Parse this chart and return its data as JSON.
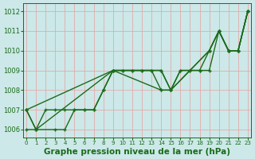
{
  "line1_x": [
    0,
    1,
    2,
    3,
    4,
    5,
    6,
    7,
    8,
    9,
    10,
    11,
    12,
    13,
    14,
    15,
    16,
    17,
    18,
    19,
    20,
    21,
    22,
    23
  ],
  "line1_y": [
    1007,
    1006,
    1007,
    1007,
    1007,
    1007,
    1007,
    1007,
    1008,
    1009,
    1009,
    1009,
    1009,
    1009,
    1009,
    1008,
    1009,
    1009,
    1009,
    1009,
    1011,
    1010,
    1010,
    1012
  ],
  "line2_x": [
    0,
    1,
    3,
    4,
    5,
    6,
    7,
    8,
    9,
    10,
    11,
    12,
    13,
    14,
    15,
    16,
    17,
    18,
    19,
    20,
    21,
    22,
    23
  ],
  "line2_y": [
    1007,
    1006,
    1006,
    1006,
    1007,
    1007,
    1007,
    1008,
    1009,
    1009,
    1009,
    1009,
    1009,
    1008,
    1008,
    1009,
    1009,
    1009,
    1010,
    1011,
    1010,
    1010,
    1012
  ],
  "line3_x": [
    0,
    9,
    14,
    15,
    19,
    20,
    21,
    22,
    23
  ],
  "line3_y": [
    1007,
    1009,
    1009,
    1008,
    1010,
    1011,
    1010,
    1010,
    1012
  ],
  "line4_x": [
    0,
    1,
    9,
    14,
    15,
    19,
    20,
    21,
    22,
    23
  ],
  "line4_y": [
    1006,
    1006,
    1009,
    1008,
    1008,
    1010,
    1011,
    1010,
    1010,
    1012
  ],
  "xlim": [
    -0.3,
    23.3
  ],
  "ylim": [
    1005.6,
    1012.4
  ],
  "yticks": [
    1006,
    1007,
    1008,
    1009,
    1010,
    1011,
    1012
  ],
  "xticks": [
    0,
    1,
    2,
    3,
    4,
    5,
    6,
    7,
    8,
    9,
    10,
    11,
    12,
    13,
    14,
    15,
    16,
    17,
    18,
    19,
    20,
    21,
    22,
    23
  ],
  "xlabel": "Graphe pression niveau de la mer (hPa)",
  "background_color": "#cce8e8",
  "grid_color": "#e8a0a0",
  "line_color": "#1a6b1a",
  "xlabel_color": "#1a6b1a",
  "xlabel_fontsize": 7.5,
  "ytick_fontsize": 6,
  "xtick_fontsize": 5
}
